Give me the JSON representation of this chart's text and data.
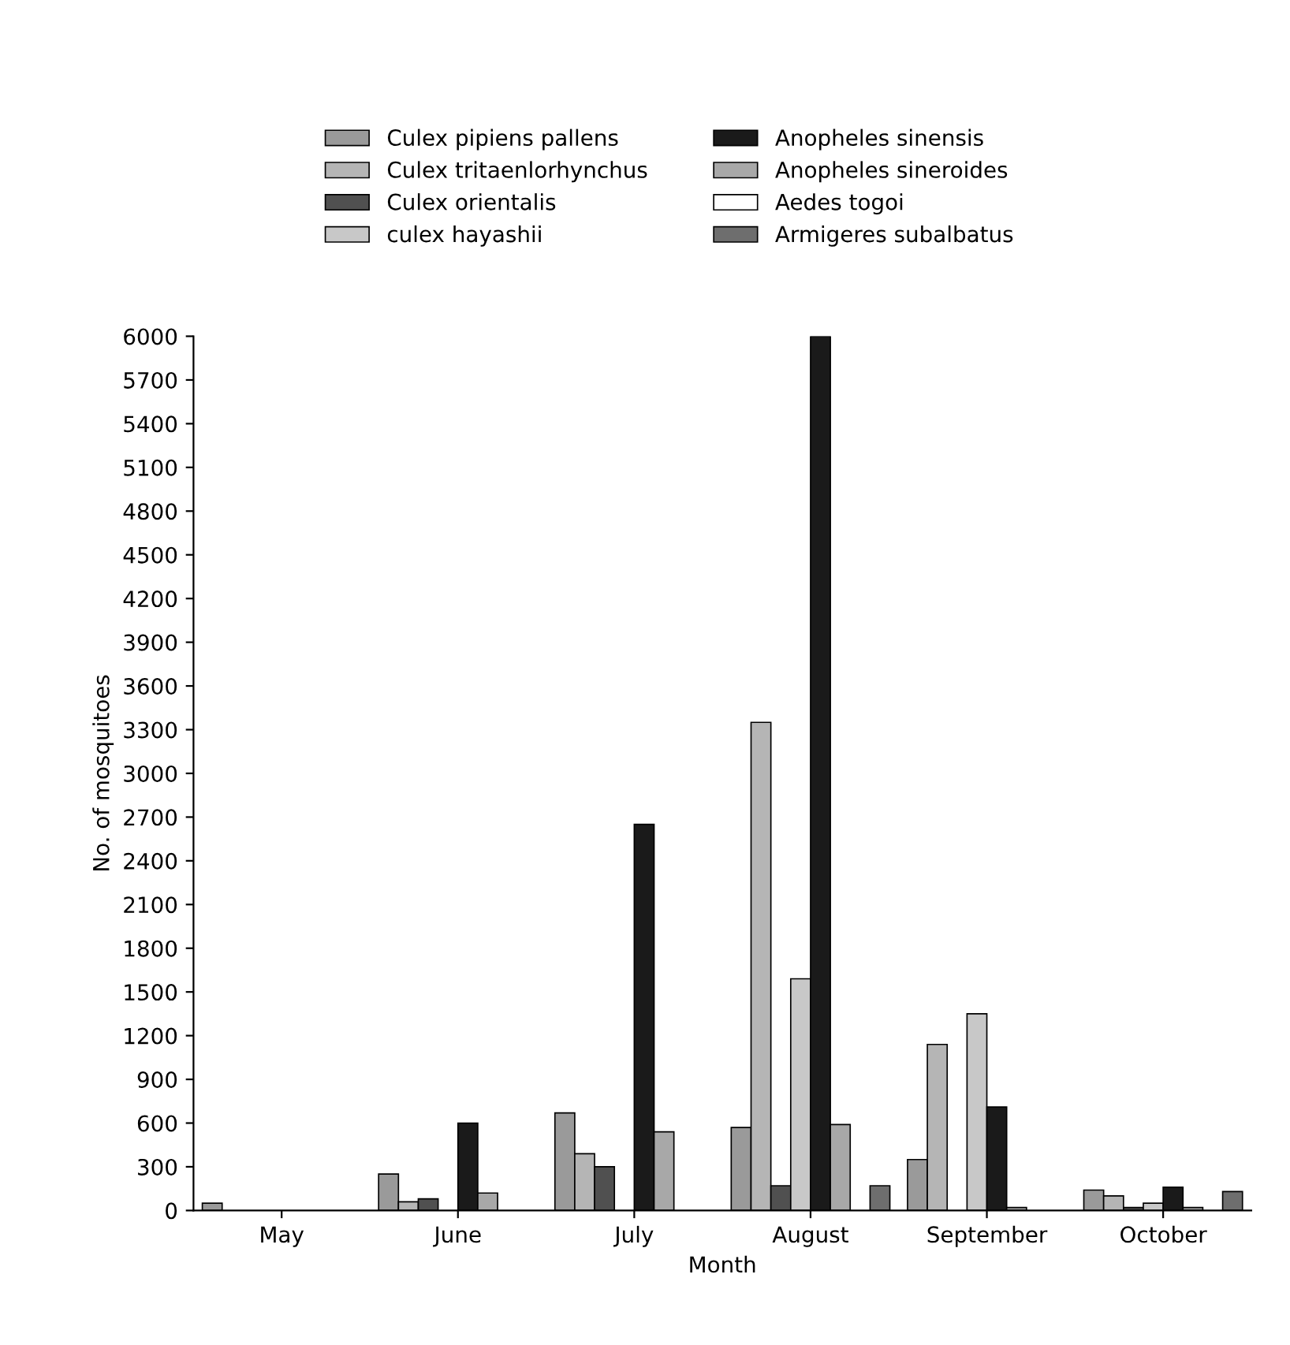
{
  "chart_data": {
    "type": "bar",
    "xlabel": "Month",
    "ylabel": "No. of mosquitoes",
    "categories": [
      "May",
      "June",
      "July",
      "August",
      "September",
      "October"
    ],
    "series": [
      {
        "name": "Culex pipiens pallens",
        "color": "#9a9a9a",
        "values": [
          50,
          250,
          670,
          570,
          350,
          140
        ]
      },
      {
        "name": "Culex tritaenlorhynchus",
        "color": "#b5b5b5",
        "values": [
          null,
          60,
          390,
          3350,
          1140,
          100
        ]
      },
      {
        "name": "Culex orientalis",
        "color": "#505050",
        "values": [
          null,
          80,
          300,
          170,
          null,
          20
        ]
      },
      {
        "name": "culex hayashii",
        "color": "#c8c8c8",
        "values": [
          null,
          null,
          null,
          1590,
          1350,
          50
        ]
      },
      {
        "name": "Anopheles sinensis",
        "color": "#1a1a1a",
        "values": [
          null,
          600,
          2650,
          6000,
          710,
          160
        ]
      },
      {
        "name": "Anopheles sineroides",
        "color": "#a8a8a8",
        "values": [
          null,
          120,
          540,
          590,
          20,
          20
        ]
      },
      {
        "name": "Aedes togoi",
        "color": "#ffffff",
        "values": [
          null,
          null,
          null,
          null,
          null,
          null
        ]
      },
      {
        "name": "Armigeres subalbatus",
        "color": "#6e6e6e",
        "values": [
          null,
          null,
          null,
          170,
          null,
          130
        ]
      }
    ],
    "ylim": [
      0,
      6000
    ],
    "yticks": [
      0,
      300,
      600,
      900,
      1200,
      1500,
      1800,
      2100,
      2400,
      2700,
      3000,
      3300,
      3600,
      3900,
      4200,
      4500,
      4800,
      5100,
      5400,
      5700,
      6000
    ],
    "legend": "top",
    "grid": false
  }
}
